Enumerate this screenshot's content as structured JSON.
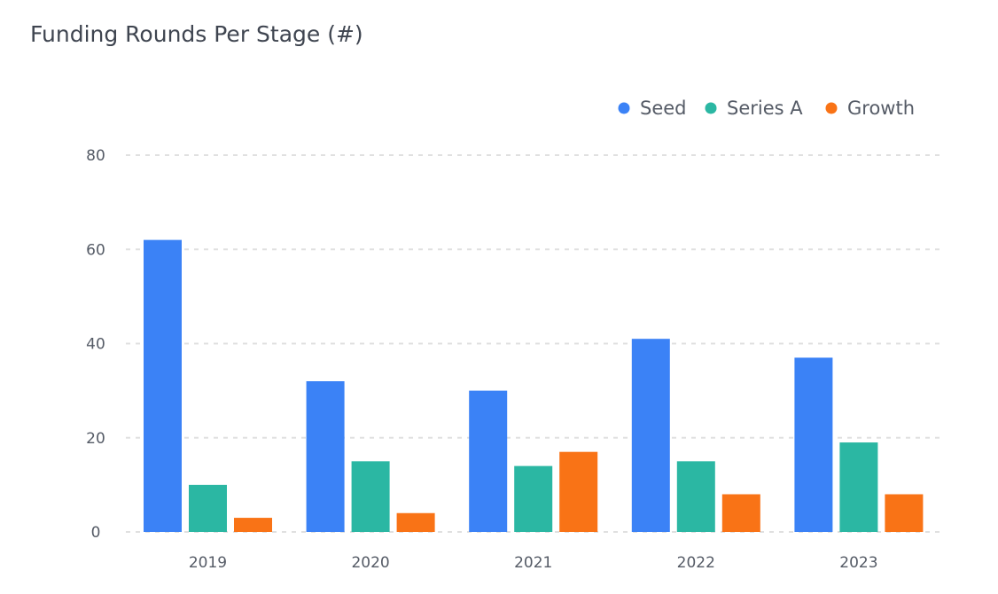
{
  "chart_data": {
    "type": "bar",
    "title": "Funding Rounds Per Stage (#)",
    "categories": [
      "2019",
      "2020",
      "2021",
      "2022",
      "2023"
    ],
    "series": [
      {
        "name": "Seed",
        "color": "#3b82f6",
        "values": [
          62,
          32,
          30,
          41,
          37
        ]
      },
      {
        "name": "Series A",
        "color": "#2bb7a3",
        "values": [
          10,
          15,
          14,
          15,
          19
        ]
      },
      {
        "name": "Growth",
        "color": "#f97316",
        "values": [
          3,
          4,
          17,
          8,
          8
        ]
      }
    ],
    "ylim": [
      0,
      80
    ],
    "yticks": [
      0,
      20,
      40,
      60,
      80
    ],
    "grid": "horizontal dotted",
    "legend": "top-right",
    "xlabel": "",
    "ylabel": ""
  }
}
